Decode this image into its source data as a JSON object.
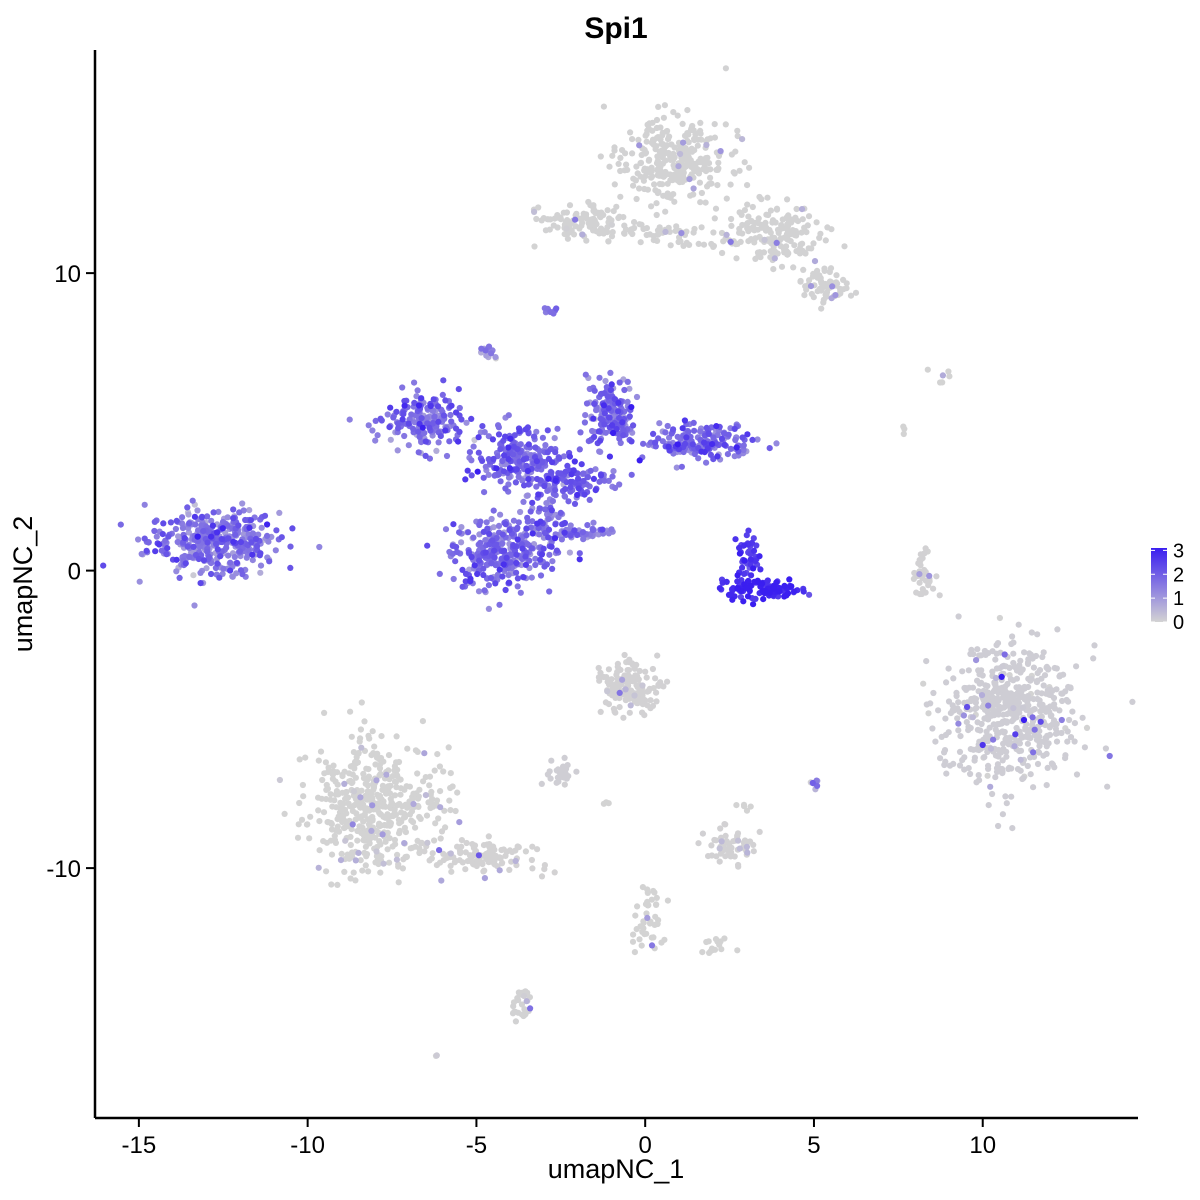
{
  "chart_data": {
    "type": "scatter",
    "title": "Spi1",
    "xlabel": "umapNC_1",
    "ylabel": "umapNC_2",
    "xlim": [
      -16.3,
      14.6
    ],
    "ylim": [
      -18.4,
      17.5
    ],
    "x_ticks": [
      -15,
      -10,
      -5,
      0,
      5,
      10
    ],
    "x_tick_labels": [
      "-15",
      "-10",
      "-5",
      "0",
      "5",
      "10"
    ],
    "y_ticks": [
      -10,
      0,
      10
    ],
    "y_tick_labels": [
      "-10",
      "0",
      "10"
    ],
    "grid": false,
    "legend_position": "right",
    "color_scale": {
      "low_color": "#d3d3d3",
      "high_color": "#3a1ef0",
      "min": 0,
      "max": 3.1,
      "ticks": [
        0,
        1,
        2,
        3
      ],
      "tick_labels": [
        "0",
        "1",
        "2",
        "3"
      ]
    },
    "clusters": [
      {
        "cx": -12.8,
        "cy": 1.0,
        "rx": 1.6,
        "ry": 0.9,
        "n": 380,
        "expr": 1.6,
        "jitter": 0.5
      },
      {
        "cx": -4.3,
        "cy": 0.6,
        "rx": 1.2,
        "ry": 1.0,
        "n": 320,
        "expr": 1.6,
        "jitter": 0.5
      },
      {
        "cx": -6.5,
        "cy": 5.0,
        "rx": 1.0,
        "ry": 0.8,
        "n": 180,
        "expr": 1.7,
        "jitter": 0.5
      },
      {
        "cx": -3.8,
        "cy": 3.8,
        "rx": 1.0,
        "ry": 0.8,
        "n": 200,
        "expr": 1.8,
        "jitter": 0.5
      },
      {
        "cx": -1.0,
        "cy": 5.3,
        "rx": 0.6,
        "ry": 1.0,
        "n": 160,
        "expr": 1.8,
        "jitter": 0.5
      },
      {
        "cx": 1.6,
        "cy": 4.3,
        "rx": 1.4,
        "ry": 0.5,
        "n": 170,
        "expr": 1.8,
        "jitter": 0.5
      },
      {
        "cx": -2.2,
        "cy": 3.0,
        "rx": 1.2,
        "ry": 0.5,
        "n": 120,
        "expr": 1.8,
        "jitter": 0.5
      },
      {
        "cx": -2.8,
        "cy": 1.5,
        "rx": 0.6,
        "ry": 0.9,
        "n": 80,
        "expr": 1.7,
        "jitter": 0.5
      },
      {
        "cx": -1.7,
        "cy": 1.3,
        "rx": 0.7,
        "ry": 0.2,
        "n": 40,
        "expr": 1.5,
        "jitter": 0.4
      },
      {
        "cx": 3.4,
        "cy": -0.6,
        "rx": 1.0,
        "ry": 0.3,
        "n": 110,
        "expr": 2.9,
        "jitter": 0.3
      },
      {
        "cx": 3.1,
        "cy": 0.6,
        "rx": 0.3,
        "ry": 0.6,
        "n": 40,
        "expr": 2.6,
        "jitter": 0.3
      },
      {
        "cx": -4.7,
        "cy": 7.3,
        "rx": 0.2,
        "ry": 0.2,
        "n": 14,
        "expr": 0.8,
        "jitter": 0.5
      },
      {
        "cx": -2.8,
        "cy": 8.7,
        "rx": 0.2,
        "ry": 0.2,
        "n": 8,
        "expr": 1.6,
        "jitter": 0.3
      },
      {
        "cx": 0.9,
        "cy": 13.8,
        "rx": 1.3,
        "ry": 1.2,
        "n": 320,
        "expr": 0.05,
        "jitter": 0.8
      },
      {
        "cx": -1.8,
        "cy": 11.7,
        "rx": 1.1,
        "ry": 0.5,
        "n": 110,
        "expr": 0.05,
        "jitter": 0.8
      },
      {
        "cx": 3.8,
        "cy": 11.3,
        "rx": 1.2,
        "ry": 0.8,
        "n": 170,
        "expr": 0.08,
        "jitter": 0.8
      },
      {
        "cx": 5.3,
        "cy": 9.6,
        "rx": 0.7,
        "ry": 0.5,
        "n": 70,
        "expr": 0.05,
        "jitter": 0.8
      },
      {
        "cx": 0.8,
        "cy": 11.3,
        "rx": 1.3,
        "ry": 0.3,
        "n": 50,
        "expr": 0.05,
        "jitter": 0.8
      },
      {
        "cx": 10.8,
        "cy": -4.8,
        "rx": 1.7,
        "ry": 1.9,
        "n": 560,
        "expr": 0.35,
        "jitter": 1.4
      },
      {
        "cx": -8.0,
        "cy": -8.0,
        "rx": 1.6,
        "ry": 1.8,
        "n": 480,
        "expr": 0.02,
        "jitter": 0.8
      },
      {
        "cx": -5.0,
        "cy": -9.6,
        "rx": 1.4,
        "ry": 0.5,
        "n": 120,
        "expr": 0.03,
        "jitter": 0.8
      },
      {
        "cx": -0.5,
        "cy": -3.9,
        "rx": 0.7,
        "ry": 0.8,
        "n": 140,
        "expr": 0.1,
        "jitter": 0.8
      },
      {
        "cx": -2.5,
        "cy": -6.8,
        "rx": 0.4,
        "ry": 0.3,
        "n": 25,
        "expr": 0.3,
        "jitter": 0.8
      },
      {
        "cx": 2.5,
        "cy": -9.2,
        "rx": 0.6,
        "ry": 0.5,
        "n": 60,
        "expr": 0.1,
        "jitter": 0.8
      },
      {
        "cx": 8.3,
        "cy": -0.1,
        "rx": 0.3,
        "ry": 0.7,
        "n": 35,
        "expr": 0.1,
        "jitter": 0.8
      },
      {
        "cx": 0.1,
        "cy": -11.8,
        "rx": 0.5,
        "ry": 0.9,
        "n": 45,
        "expr": 0.02,
        "jitter": 0.8
      },
      {
        "cx": -3.6,
        "cy": -14.6,
        "rx": 0.3,
        "ry": 0.5,
        "n": 30,
        "expr": 0.05,
        "jitter": 0.8
      },
      {
        "cx": 2.0,
        "cy": -12.6,
        "rx": 0.4,
        "ry": 0.2,
        "n": 15,
        "expr": 0.02,
        "jitter": 0.8
      },
      {
        "cx": 5.0,
        "cy": -7.2,
        "rx": 0.2,
        "ry": 0.2,
        "n": 8,
        "expr": 0.6,
        "jitter": 0.8
      },
      {
        "cx": 8.7,
        "cy": 6.6,
        "rx": 0.7,
        "ry": 0.3,
        "n": 6,
        "expr": 0.0,
        "jitter": 0.5
      },
      {
        "cx": 7.7,
        "cy": 4.7,
        "rx": 0.1,
        "ry": 0.2,
        "n": 3,
        "expr": 0.0,
        "jitter": 0.5
      },
      {
        "cx": 3.0,
        "cy": -7.8,
        "rx": 0.2,
        "ry": 0.3,
        "n": 5,
        "expr": 0.0,
        "jitter": 0.5
      },
      {
        "cx": -6.2,
        "cy": -16.3,
        "rx": 0.05,
        "ry": 0.05,
        "n": 2,
        "expr": 0.5,
        "jitter": 0.5
      },
      {
        "cx": -1.2,
        "cy": -7.8,
        "rx": 0.2,
        "ry": 0.2,
        "n": 3,
        "expr": 0.0,
        "jitter": 0.5
      }
    ]
  }
}
